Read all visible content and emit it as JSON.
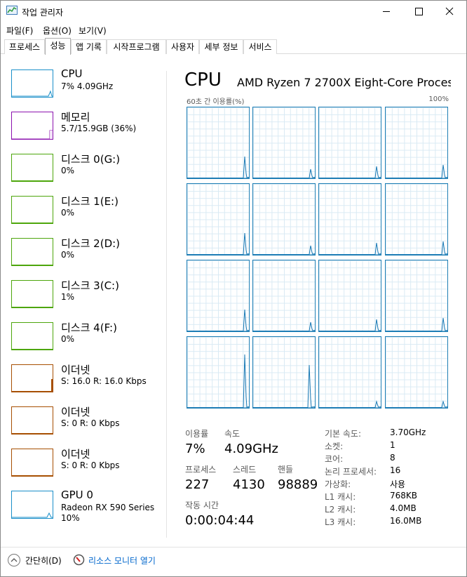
{
  "window": {
    "title": "작업 관리자"
  },
  "menu": [
    "파일(F)",
    "옵션(O)",
    "보기(V)"
  ],
  "tabs": [
    "프로세스",
    "성능",
    "앱 기록",
    "시작프로그램",
    "사용자",
    "세부 정보",
    "서비스"
  ],
  "sidebar": [
    {
      "name": "CPU",
      "detail": "7% 4.09GHz"
    },
    {
      "name": "메모리",
      "detail": "5.7/15.9GB (36%)"
    },
    {
      "name": "디스크 0(G:)",
      "detail": "0%"
    },
    {
      "name": "디스크 1(E:)",
      "detail": "0%"
    },
    {
      "name": "디스크 2(D:)",
      "detail": "0%"
    },
    {
      "name": "디스크 3(C:)",
      "detail": "1%"
    },
    {
      "name": "디스크 4(F:)",
      "detail": "0%"
    },
    {
      "name": "이더넷",
      "detail": "S: 16.0  R: 16.0 Kbps"
    },
    {
      "name": "이더넷",
      "detail": "S: 0  R: 0 Kbps"
    },
    {
      "name": "이더넷",
      "detail": "S: 0  R: 0 Kbps"
    },
    {
      "name": "GPU 0",
      "detail": "Radeon RX 590 Series",
      "detail2": "10%"
    }
  ],
  "main": {
    "title": "CPU",
    "model": "AMD Ryzen 7 2700X Eight-Core Proces...",
    "graph_label": "60초 간 이용률(%)",
    "graph_max": "100%",
    "stats": [
      {
        "label": "이용률",
        "value": "7%"
      },
      {
        "label": "속도",
        "value": "4.09GHz"
      },
      {
        "label": "프로세스",
        "value": 227
      },
      {
        "label": "스레드",
        "value": 4130
      },
      {
        "label": "핸들",
        "value": 98889
      },
      {
        "label": "작동 시간",
        "value": "0:00:04:44"
      }
    ],
    "specs": [
      {
        "label": "기본 속도:",
        "value": "3.70GHz"
      },
      {
        "label": "소켓:",
        "value": 1
      },
      {
        "label": "코어:",
        "value": 8
      },
      {
        "label": "논리 프로세서:",
        "value": 16
      },
      {
        "label": "가상화:",
        "value": "사용"
      },
      {
        "label": "L1 캐시:",
        "value": "768KB"
      },
      {
        "label": "L2 캐시:",
        "value": "4.0MB"
      },
      {
        "label": "L3 캐시:",
        "value": "16.0MB"
      }
    ]
  },
  "footer": {
    "less": "간단히(D)",
    "monitor": "리소스 모니터 열기"
  }
}
